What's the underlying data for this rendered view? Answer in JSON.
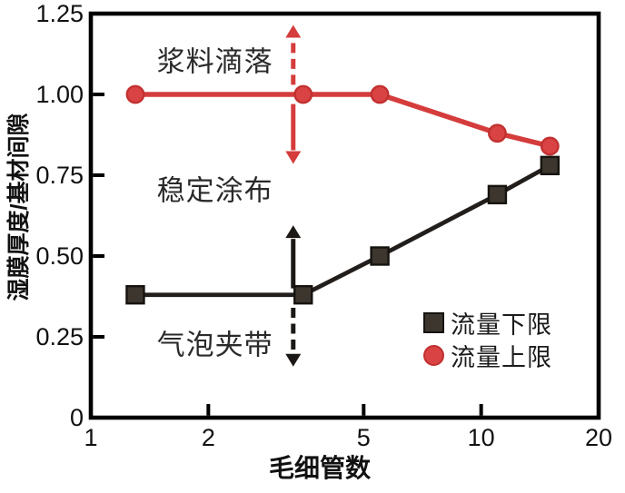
{
  "colors": {
    "background": "#ffffff",
    "axis": "#000000",
    "text": "#111111",
    "red_line": "#d53c3c",
    "red_marker_fill": "#da4343",
    "red_marker_edge": "#c23030",
    "black_line": "#211e1c",
    "black_marker_fill": "#3c362f",
    "black_marker_edge": "#16130f"
  },
  "chart_data": {
    "type": "line",
    "xlabel": "毛细管数",
    "ylabel": "湿膜厚度/基材间隙",
    "xscale": "log",
    "xlim": [
      1,
      20
    ],
    "ylim": [
      0,
      1.25
    ],
    "grid": false,
    "legend_position": "inside right middle",
    "xticks": [
      {
        "value": 1,
        "label": "1"
      },
      {
        "value": 2,
        "label": "2"
      },
      {
        "value": 5,
        "label": "5"
      },
      {
        "value": 10,
        "label": "10"
      },
      {
        "value": 20,
        "label": "20"
      }
    ],
    "yticks": [
      {
        "value": 0,
        "label": "0"
      },
      {
        "value": 0.25,
        "label": "0.25"
      },
      {
        "value": 0.5,
        "label": "0.50"
      },
      {
        "value": 0.75,
        "label": "0.75"
      },
      {
        "value": 1.0,
        "label": "1.00"
      },
      {
        "value": 1.25,
        "label": "1.25"
      }
    ],
    "x": [
      1.3,
      3.5,
      5.5,
      11,
      15
    ],
    "series": [
      {
        "name": "流量下限",
        "marker": "square",
        "line_color": "#211e1c",
        "marker_fill": "#3c362f",
        "marker_edge": "#16130f",
        "values": [
          0.38,
          0.38,
          0.5,
          0.69,
          0.78
        ]
      },
      {
        "name": "流量上限",
        "marker": "circle",
        "line_color": "#d53c3c",
        "marker_fill": "#da4343",
        "marker_edge": "#c23030",
        "values": [
          1.0,
          1.0,
          1.0,
          0.88,
          0.84
        ]
      }
    ],
    "annotations": [
      {
        "text": "浆料滴落",
        "x": 2.08,
        "y": 1.11
      },
      {
        "text": "稳定涂布",
        "x": 2.08,
        "y": 0.71
      },
      {
        "text": "气泡夹带",
        "x": 2.08,
        "y": 0.233
      }
    ],
    "arrows": [
      {
        "x": 3.3,
        "from": 1.03,
        "to": 1.215,
        "style": "dashed",
        "color": "#d53c3c",
        "direction": "up"
      },
      {
        "x": 3.3,
        "from": 0.97,
        "to": 0.785,
        "style": "solid",
        "color": "#d53c3c",
        "direction": "down"
      },
      {
        "x": 3.3,
        "from": 0.4,
        "to": 0.595,
        "style": "solid",
        "color": "#1b1816",
        "direction": "up"
      },
      {
        "x": 3.3,
        "from": 0.34,
        "to": 0.158,
        "style": "dashed",
        "color": "#1b1816",
        "direction": "down"
      }
    ]
  }
}
